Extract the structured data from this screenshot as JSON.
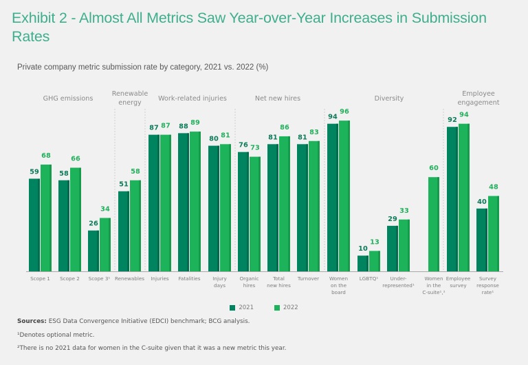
{
  "chart_data": {
    "type": "bar",
    "title": "Exhibit 2 - Almost All Metrics Saw Year-over-Year Increases in Submission Rates",
    "subtitle": "Private company metric submission rate by category, 2021 vs. 2022 (%)",
    "xlabel": "",
    "ylabel": "",
    "ylim": [
      0,
      100
    ],
    "grid": false,
    "legend_position": "bottom-center",
    "colors": {
      "2021": "#00845f",
      "2022": "#1db35a"
    },
    "groups": [
      {
        "label": "GHG emissions",
        "categories": [
          "Scope 1",
          "Scope 2",
          "Scope 3¹"
        ]
      },
      {
        "label": "Renewable energy",
        "label_lines": [
          "Renewable",
          "energy"
        ],
        "categories": [
          "Renewables"
        ]
      },
      {
        "label": "Work-related injuries",
        "categories": [
          "Injuries",
          "Fatalities",
          "Injury days"
        ]
      },
      {
        "label": "Net new hires",
        "categories": [
          "Organic hires",
          "Total new hires",
          "Turnover"
        ]
      },
      {
        "label": "Diversity",
        "categories": [
          "Women on the board",
          "LGBTQ¹",
          "Under-represented¹",
          "Women in the C-suite¹,²"
        ]
      },
      {
        "label": "Employee engagement",
        "label_lines": [
          "Employee",
          "engagement"
        ],
        "categories": [
          "Employee survey",
          "Survey response rate¹"
        ]
      }
    ],
    "categories": [
      {
        "name": "Scope 1",
        "lines": [
          "Scope 1"
        ]
      },
      {
        "name": "Scope 2",
        "lines": [
          "Scope 2"
        ]
      },
      {
        "name": "Scope 3¹",
        "lines": [
          "Scope 3¹"
        ]
      },
      {
        "name": "Renewables",
        "lines": [
          "Renewables"
        ]
      },
      {
        "name": "Injuries",
        "lines": [
          "Injuries"
        ]
      },
      {
        "name": "Fatalities",
        "lines": [
          "Fatalities"
        ]
      },
      {
        "name": "Injury days",
        "lines": [
          "Injury",
          "days"
        ]
      },
      {
        "name": "Organic hires",
        "lines": [
          "Organic",
          "hires"
        ]
      },
      {
        "name": "Total new hires",
        "lines": [
          "Total",
          "new hires"
        ]
      },
      {
        "name": "Turnover",
        "lines": [
          "Turnover"
        ]
      },
      {
        "name": "Women on the board",
        "lines": [
          "Women",
          "on the",
          "board"
        ]
      },
      {
        "name": "LGBTQ¹",
        "lines": [
          "LGBTQ¹"
        ]
      },
      {
        "name": "Under-represented¹",
        "lines": [
          "Under-",
          "represented¹"
        ]
      },
      {
        "name": "Women in the C-suite¹,²",
        "lines": [
          "Women",
          "in the",
          "C-suite¹,²"
        ]
      },
      {
        "name": "Employee survey",
        "lines": [
          "Employee",
          "survey"
        ]
      },
      {
        "name": "Survey response rate¹",
        "lines": [
          "Survey",
          "response",
          "rate¹"
        ]
      }
    ],
    "series": [
      {
        "name": "2021",
        "values": [
          59,
          58,
          26,
          51,
          87,
          88,
          80,
          76,
          81,
          81,
          94,
          10,
          29,
          null,
          92,
          40
        ]
      },
      {
        "name": "2022",
        "values": [
          68,
          66,
          34,
          58,
          87,
          89,
          81,
          73,
          86,
          83,
          96,
          13,
          33,
          60,
          94,
          48
        ]
      }
    ]
  },
  "legend": {
    "items": [
      {
        "label": "2021"
      },
      {
        "label": "2022"
      }
    ]
  },
  "notes": {
    "sources_label": "Sources:",
    "sources_text": " ESG Data Convergence Initiative (EDCI) benchmark; BCG analysis.",
    "note1": "¹Denotes optional metric.",
    "note2": "²There is no 2021 data for women in the C-suite given that it was a new metric this year."
  }
}
